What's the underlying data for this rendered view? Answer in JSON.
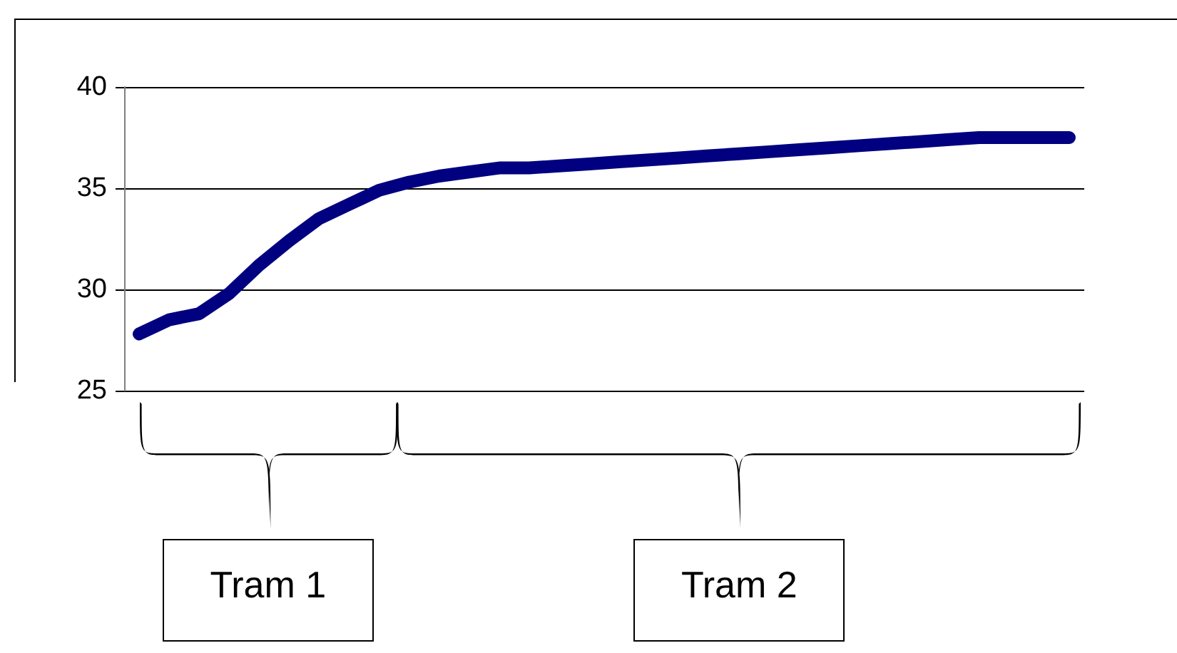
{
  "chart_data": {
    "type": "line",
    "categories": [
      null,
      null,
      null,
      null,
      null,
      null,
      null,
      null,
      null,
      null,
      null,
      null,
      null,
      null,
      null,
      null,
      null,
      null,
      null,
      null,
      null,
      null,
      null,
      null,
      null,
      null,
      null,
      null,
      null,
      null,
      null,
      null
    ],
    "series": [
      {
        "color": "#000080",
        "values": [
          27.8,
          28.5,
          28.8,
          29.8,
          31.2,
          32.4,
          33.5,
          34.2,
          34.9,
          35.3,
          35.6,
          35.8,
          36.0,
          36.0,
          36.1,
          36.2,
          36.3,
          36.4,
          36.5,
          36.6,
          36.7,
          36.8,
          36.9,
          37.0,
          37.1,
          37.2,
          37.3,
          37.4,
          37.5,
          37.5,
          37.5,
          37.5
        ]
      }
    ],
    "ylim": [
      25,
      40
    ],
    "yticks": [
      25,
      30,
      35,
      40
    ],
    "grid": "y",
    "line_style": "solid",
    "annotations": [
      "Tram 1",
      "Tram 2"
    ]
  }
}
